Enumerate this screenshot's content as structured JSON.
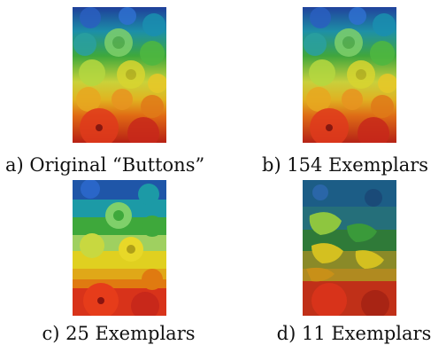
{
  "figure": {
    "panels": [
      {
        "caption": "a) Original “Buttons”"
      },
      {
        "caption": "b) 154 Exemplars"
      },
      {
        "caption": "c) 25 Exemplars"
      },
      {
        "caption": "d) 11 Exemplars"
      }
    ]
  },
  "colors": {
    "blue": "#1f56a8",
    "teal": "#1c9aa6",
    "green": "#3ea83b",
    "light_green": "#9fd060",
    "yellow": "#e0d020",
    "orange": "#e07a10",
    "red": "#d8331a",
    "dark_red": "#8a1410"
  }
}
